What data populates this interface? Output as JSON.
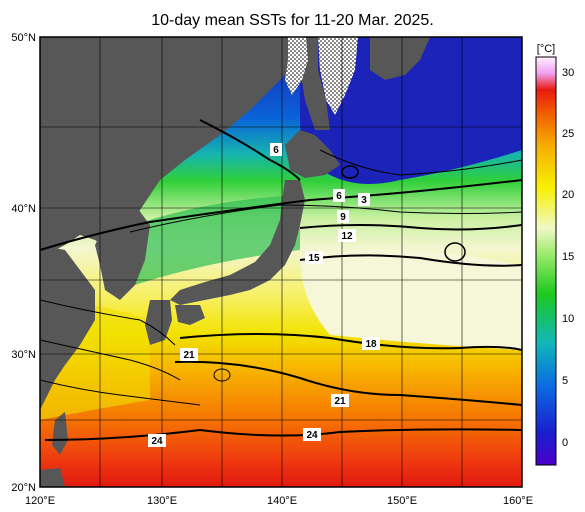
{
  "title": "10-day mean SSTs for 11-20 Mar. 2025.",
  "lat_labels": [
    "50°N",
    "40°N",
    "30°N",
    "20°N"
  ],
  "lon_labels": [
    "120°E",
    "130°E",
    "140°E",
    "150°E",
    "160°E"
  ],
  "colorbar": {
    "unit": "[°C]",
    "ticks": [
      "30",
      "25",
      "20",
      "15",
      "10",
      "5",
      "0"
    ]
  },
  "contour_labels": [
    "6",
    "6",
    "3",
    "9",
    "12",
    "15",
    "18",
    "21",
    "21",
    "24",
    "24"
  ],
  "colors": {
    "land": "#575757",
    "sea_ice": "#ffffff"
  }
}
